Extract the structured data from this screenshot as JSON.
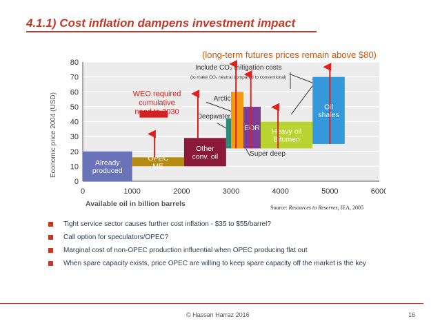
{
  "slide": {
    "title": "4.1.1) Cost inflation dampens investment impact",
    "subtitle": "(long-term futures prices remain above $80)",
    "source_label": "Source:",
    "source_ref": "Resources to Reserves",
    "source_tail": ", IEA, 2005",
    "bullets": [
      "Tight service sector causes further cost inflation - $35 to $55/barrel?",
      "Call option for speculators/OPEC?",
      "Marginal cost of non-OPEC production influential when OPEC producing flat out",
      "When spare capacity exists, price OPEC are willing to keep spare capacity off the market is the key"
    ],
    "footer": "© Hassan Harraz 2016",
    "page_number": "16"
  },
  "colors": {
    "accent": "#c0392b",
    "subtitle": "#d35400",
    "arrow": "#e0201c"
  },
  "chart_data": {
    "type": "bar",
    "xlabel": "Available oil in billion barrels",
    "ylabel": "Economic price 2004 (USD)",
    "xlim": [
      0,
      6000
    ],
    "ylim": [
      0,
      80
    ],
    "xticks": [
      0,
      1000,
      2000,
      3000,
      4000,
      5000,
      6000
    ],
    "yticks": [
      0,
      10,
      20,
      30,
      40,
      50,
      60,
      70,
      80
    ],
    "grid": true,
    "categories": [
      {
        "label": "Already produced",
        "x0": 0,
        "x1": 1000,
        "y0": 0,
        "y1": 20,
        "color": "#6b73b8",
        "text_color": "#ffffff"
      },
      {
        "label": "OPEC ME",
        "x0": 1000,
        "x1": 2050,
        "y0": 10,
        "y1": 16,
        "color": "#b58c13",
        "text_color": "#ffffff"
      },
      {
        "label": "Other conv. oil",
        "x0": 2050,
        "x1": 2900,
        "y0": 10,
        "y1": 29,
        "color": "#8b1a3a",
        "text_color": "#ffffff"
      },
      {
        "label": "Deepwater",
        "x0": 2900,
        "x1": 3000,
        "y0": 22,
        "y1": 42,
        "color": "#2e8b7a",
        "text_color": "#000000"
      },
      {
        "label": "Arctic",
        "x0": 3000,
        "x1": 3250,
        "y0": 22,
        "y1": 60,
        "color": "#f39c12",
        "text_color": "#000000"
      },
      {
        "label": "EOR",
        "x0": 3250,
        "x1": 3600,
        "y0": 22,
        "y1": 50,
        "color": "#7d3c98",
        "text_color": "#ffffff"
      },
      {
        "label": "Heavy oil Bitumen",
        "x0": 3600,
        "x1": 4650,
        "y0": 22,
        "y1": 40,
        "color": "#b9d432",
        "text_color": "#ffffff"
      },
      {
        "label": "Oil shales",
        "x0": 4650,
        "x1": 5300,
        "y0": 25,
        "y1": 70,
        "color": "#3498db",
        "text_color": "#ffffff"
      }
    ],
    "arrows": [
      {
        "x": 1450,
        "y0": 16,
        "y1": 34
      },
      {
        "x": 2330,
        "y0": 29,
        "y1": 61
      },
      {
        "x": 3100,
        "y0": 22,
        "y1": 81
      },
      {
        "x": 3400,
        "y0": 22,
        "y1": 74
      },
      {
        "x": 3950,
        "y0": 22,
        "y1": 52
      },
      {
        "x": 5000,
        "y0": 25,
        "y1": 79
      }
    ],
    "labels": [
      {
        "text": "Include CO₂ mitigation costs",
        "x": 3150,
        "y": 75,
        "size": 10
      },
      {
        "text": "(to make CO₂ neutral compared to conventional)",
        "x": 3150,
        "y": 69,
        "size": 6.5
      },
      {
        "text": "WEO required",
        "x": 1500,
        "y": 57,
        "size": 11,
        "color": "#d42020"
      },
      {
        "text": "cumulative",
        "x": 1500,
        "y": 51,
        "size": 11,
        "color": "#d42020"
      },
      {
        "text": "need to 2030",
        "x": 1500,
        "y": 45,
        "size": 11,
        "color": "#d42020"
      },
      {
        "text": "Arctic",
        "x": 2820,
        "y": 54,
        "size": 10
      },
      {
        "text": "Deepwater",
        "x": 2650,
        "y": 42,
        "size": 10
      },
      {
        "text": "Super deep",
        "x": 3740,
        "y": 17,
        "size": 10
      }
    ],
    "weo_marker": {
      "x0": 1150,
      "x1": 1720,
      "y": 45
    },
    "annotation_lines": [
      {
        "x0": 2500,
        "y0": 53,
        "x1": 3000,
        "y1": 47
      },
      {
        "x0": 2720,
        "y0": 39,
        "x1": 2930,
        "y1": 35
      },
      {
        "x0": 3380,
        "y0": 17,
        "x1": 3300,
        "y1": 22
      },
      {
        "x0": 4180,
        "y0": 72,
        "x1": 4650,
        "y1": 66
      },
      {
        "x0": 4200,
        "y0": 73,
        "x1": 4200,
        "y1": 62
      },
      {
        "x0": 4220,
        "y0": 45,
        "x1": 4650,
        "y1": 64
      }
    ]
  }
}
